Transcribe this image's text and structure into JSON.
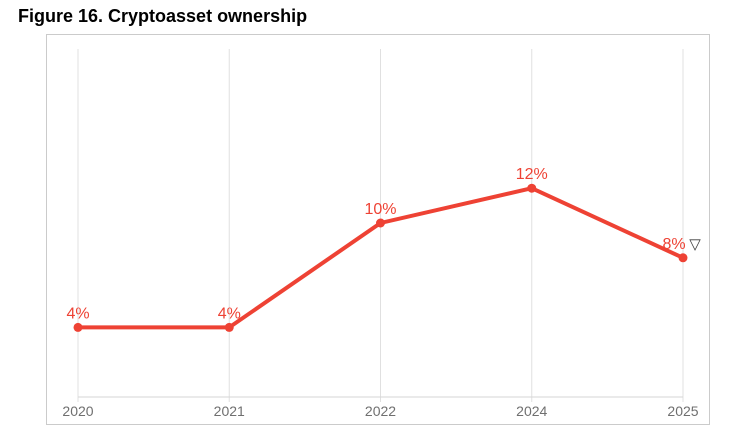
{
  "figure_title": "Figure 16. Cryptoasset ownership",
  "colors": {
    "line": "#ee4234",
    "data_label": "#ee4234",
    "grid": "#e0e0e0",
    "axis_line": "#d6d6d6",
    "box_border": "#cbcbcb",
    "tick_label": "#6f6f6f",
    "triangle": "#3c3c3c",
    "background": "#ffffff"
  },
  "chart_data": {
    "type": "line",
    "title": "Figure 16. Cryptoasset ownership",
    "categories": [
      "2020",
      "2021",
      "2022",
      "2024",
      "2025"
    ],
    "values": [
      4,
      4,
      10,
      12,
      8
    ],
    "data_labels": [
      "4%",
      "4%",
      "10%",
      "12%",
      "8%"
    ],
    "ylim": [
      0,
      20
    ],
    "xlabel": "",
    "ylabel": "",
    "legend": "none",
    "grid": "vertical",
    "end_marker": {
      "symbol": "▽",
      "name": "down-triangle-icon",
      "position": "after-last-data-label"
    }
  }
}
